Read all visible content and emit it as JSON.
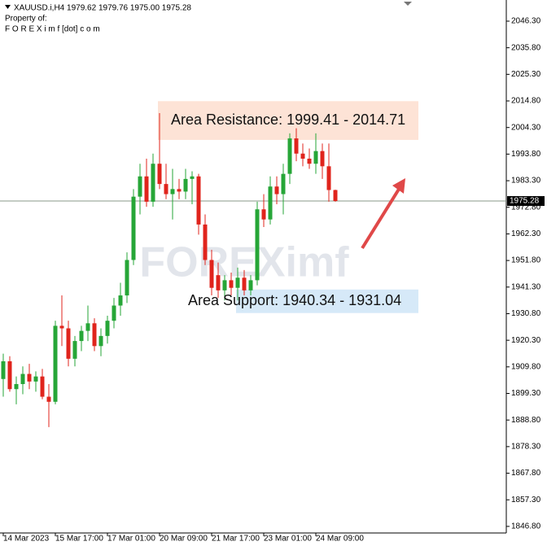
{
  "chart_data": {
    "type": "candlestick",
    "title": "XAUUSD.i,H4  1979.62 1979.76 1975.00 1975.28",
    "subtitle_lines": [
      "Property of:",
      "F O R E X i m f [dot] c o m"
    ],
    "watermark": "FOREXimf",
    "categories": [
      "14 Mar 2023",
      null,
      null,
      null,
      null,
      null,
      null,
      null,
      "15 Mar 17:00",
      null,
      null,
      null,
      null,
      null,
      null,
      null,
      "17 Mar 01:00",
      null,
      null,
      null,
      null,
      null,
      null,
      null,
      "20 Mar 09:00",
      null,
      null,
      null,
      null,
      null,
      null,
      null,
      "21 Mar 17:00",
      null,
      null,
      null,
      null,
      null,
      null,
      null,
      "23 Mar 01:00",
      null,
      null,
      null,
      null,
      null,
      null,
      null,
      "24 Mar 09:00",
      null,
      null,
      null
    ],
    "open": [
      1905,
      1912,
      1901,
      1903,
      1907,
      1904,
      1906,
      1898,
      1896,
      1926,
      1925,
      1913,
      1920,
      1924,
      1927,
      1918,
      1922,
      1928,
      1934,
      1938,
      1952,
      1977,
      1985,
      1975,
      1990,
      1982,
      1978,
      1980,
      1979,
      1984,
      1985,
      1966,
      1952,
      1946,
      1940,
      1944,
      1941,
      1945,
      1940,
      1944,
      1972,
      1968,
      1981,
      1978,
      1986,
      2000,
      1994,
      1992,
      1990,
      1995,
      1989,
      1979.62
    ],
    "high": [
      1915,
      1914,
      1906,
      1910,
      1911,
      1908,
      1909,
      1903,
      1928,
      1938,
      1928,
      1922,
      1926,
      1934,
      1929,
      1925,
      1930,
      1937,
      1943,
      1955,
      1980,
      1990,
      1992,
      1994,
      2010,
      1990,
      1988,
      1984,
      1988,
      1987,
      1986,
      1970,
      1956,
      1951,
      1946,
      1947,
      1949,
      1948,
      1946,
      1975,
      1978,
      1985,
      1985,
      1990,
      2002,
      2004,
      1998,
      1996,
      2002,
      1998,
      1998,
      1979.76
    ],
    "low": [
      1898,
      1900,
      1895,
      1899,
      1901,
      1900,
      1897,
      1886,
      1895,
      1918,
      1910,
      1910,
      1916,
      1920,
      1916,
      1914,
      1919,
      1925,
      1930,
      1935,
      1950,
      1970,
      1973,
      1973,
      1980,
      1976,
      1968,
      1976,
      1976,
      1974,
      1962,
      1950,
      1938,
      1937,
      1936,
      1938,
      1936,
      1938,
      1938,
      1942,
      1965,
      1966,
      1974,
      1970,
      1982,
      1991,
      1989,
      1988,
      1986,
      1984,
      1975,
      1975.0
    ],
    "close": [
      1912,
      1901,
      1903,
      1907,
      1904,
      1906,
      1898,
      1896,
      1926,
      1925,
      1913,
      1920,
      1924,
      1927,
      1918,
      1922,
      1928,
      1934,
      1938,
      1952,
      1977,
      1985,
      1975,
      1990,
      1982,
      1978,
      1980,
      1979,
      1984,
      1985,
      1966,
      1952,
      1941,
      1940,
      1944,
      1941,
      1945,
      1940,
      1944,
      1972,
      1968,
      1981,
      1978,
      1986,
      2000,
      1994,
      1992,
      1990,
      1995,
      1989,
      1979.62,
      1975.28
    ],
    "up_color": "#26a637",
    "down_color": "#e0241c",
    "ylim": [
      1844.2,
      2054.65
    ],
    "yticks": [
      {
        "value": 2046.3,
        "label": "2046.30"
      },
      {
        "value": 2035.8,
        "label": "2035.80"
      },
      {
        "value": 2025.3,
        "label": "2025.30"
      },
      {
        "value": 2014.8,
        "label": "2014.80"
      },
      {
        "value": 2004.3,
        "label": "2004.30"
      },
      {
        "value": 1993.8,
        "label": "1993.80"
      },
      {
        "value": 1983.3,
        "label": "1983.30"
      },
      {
        "value": 1972.8,
        "label": "1972.80"
      },
      {
        "value": 1962.3,
        "label": "1962.30"
      },
      {
        "value": 1951.8,
        "label": "1951.80"
      },
      {
        "value": 1941.3,
        "label": "1941.30"
      },
      {
        "value": 1930.8,
        "label": "1930.80"
      },
      {
        "value": 1920.3,
        "label": "1920.30"
      },
      {
        "value": 1909.8,
        "label": "1909.80"
      },
      {
        "value": 1899.3,
        "label": "1899.30"
      },
      {
        "value": 1888.8,
        "label": "1888.80"
      },
      {
        "value": 1878.3,
        "label": "1878.30"
      },
      {
        "value": 1867.8,
        "label": "1867.80"
      },
      {
        "value": 1857.3,
        "label": "1857.30"
      },
      {
        "value": 1846.8,
        "label": "1846.80"
      }
    ],
    "last_price": {
      "value": 1975.28,
      "label": "1975.28"
    },
    "zones": [
      {
        "text": "Area Resistance: 1999.41 - 2014.71",
        "range": [
          1999.41,
          2014.71
        ],
        "color": "#fde3d6"
      },
      {
        "text": "Area Support: 1940.34 - 1931.04",
        "range": [
          1931.04,
          1940.34
        ],
        "color": "#d6e9f8"
      }
    ]
  }
}
